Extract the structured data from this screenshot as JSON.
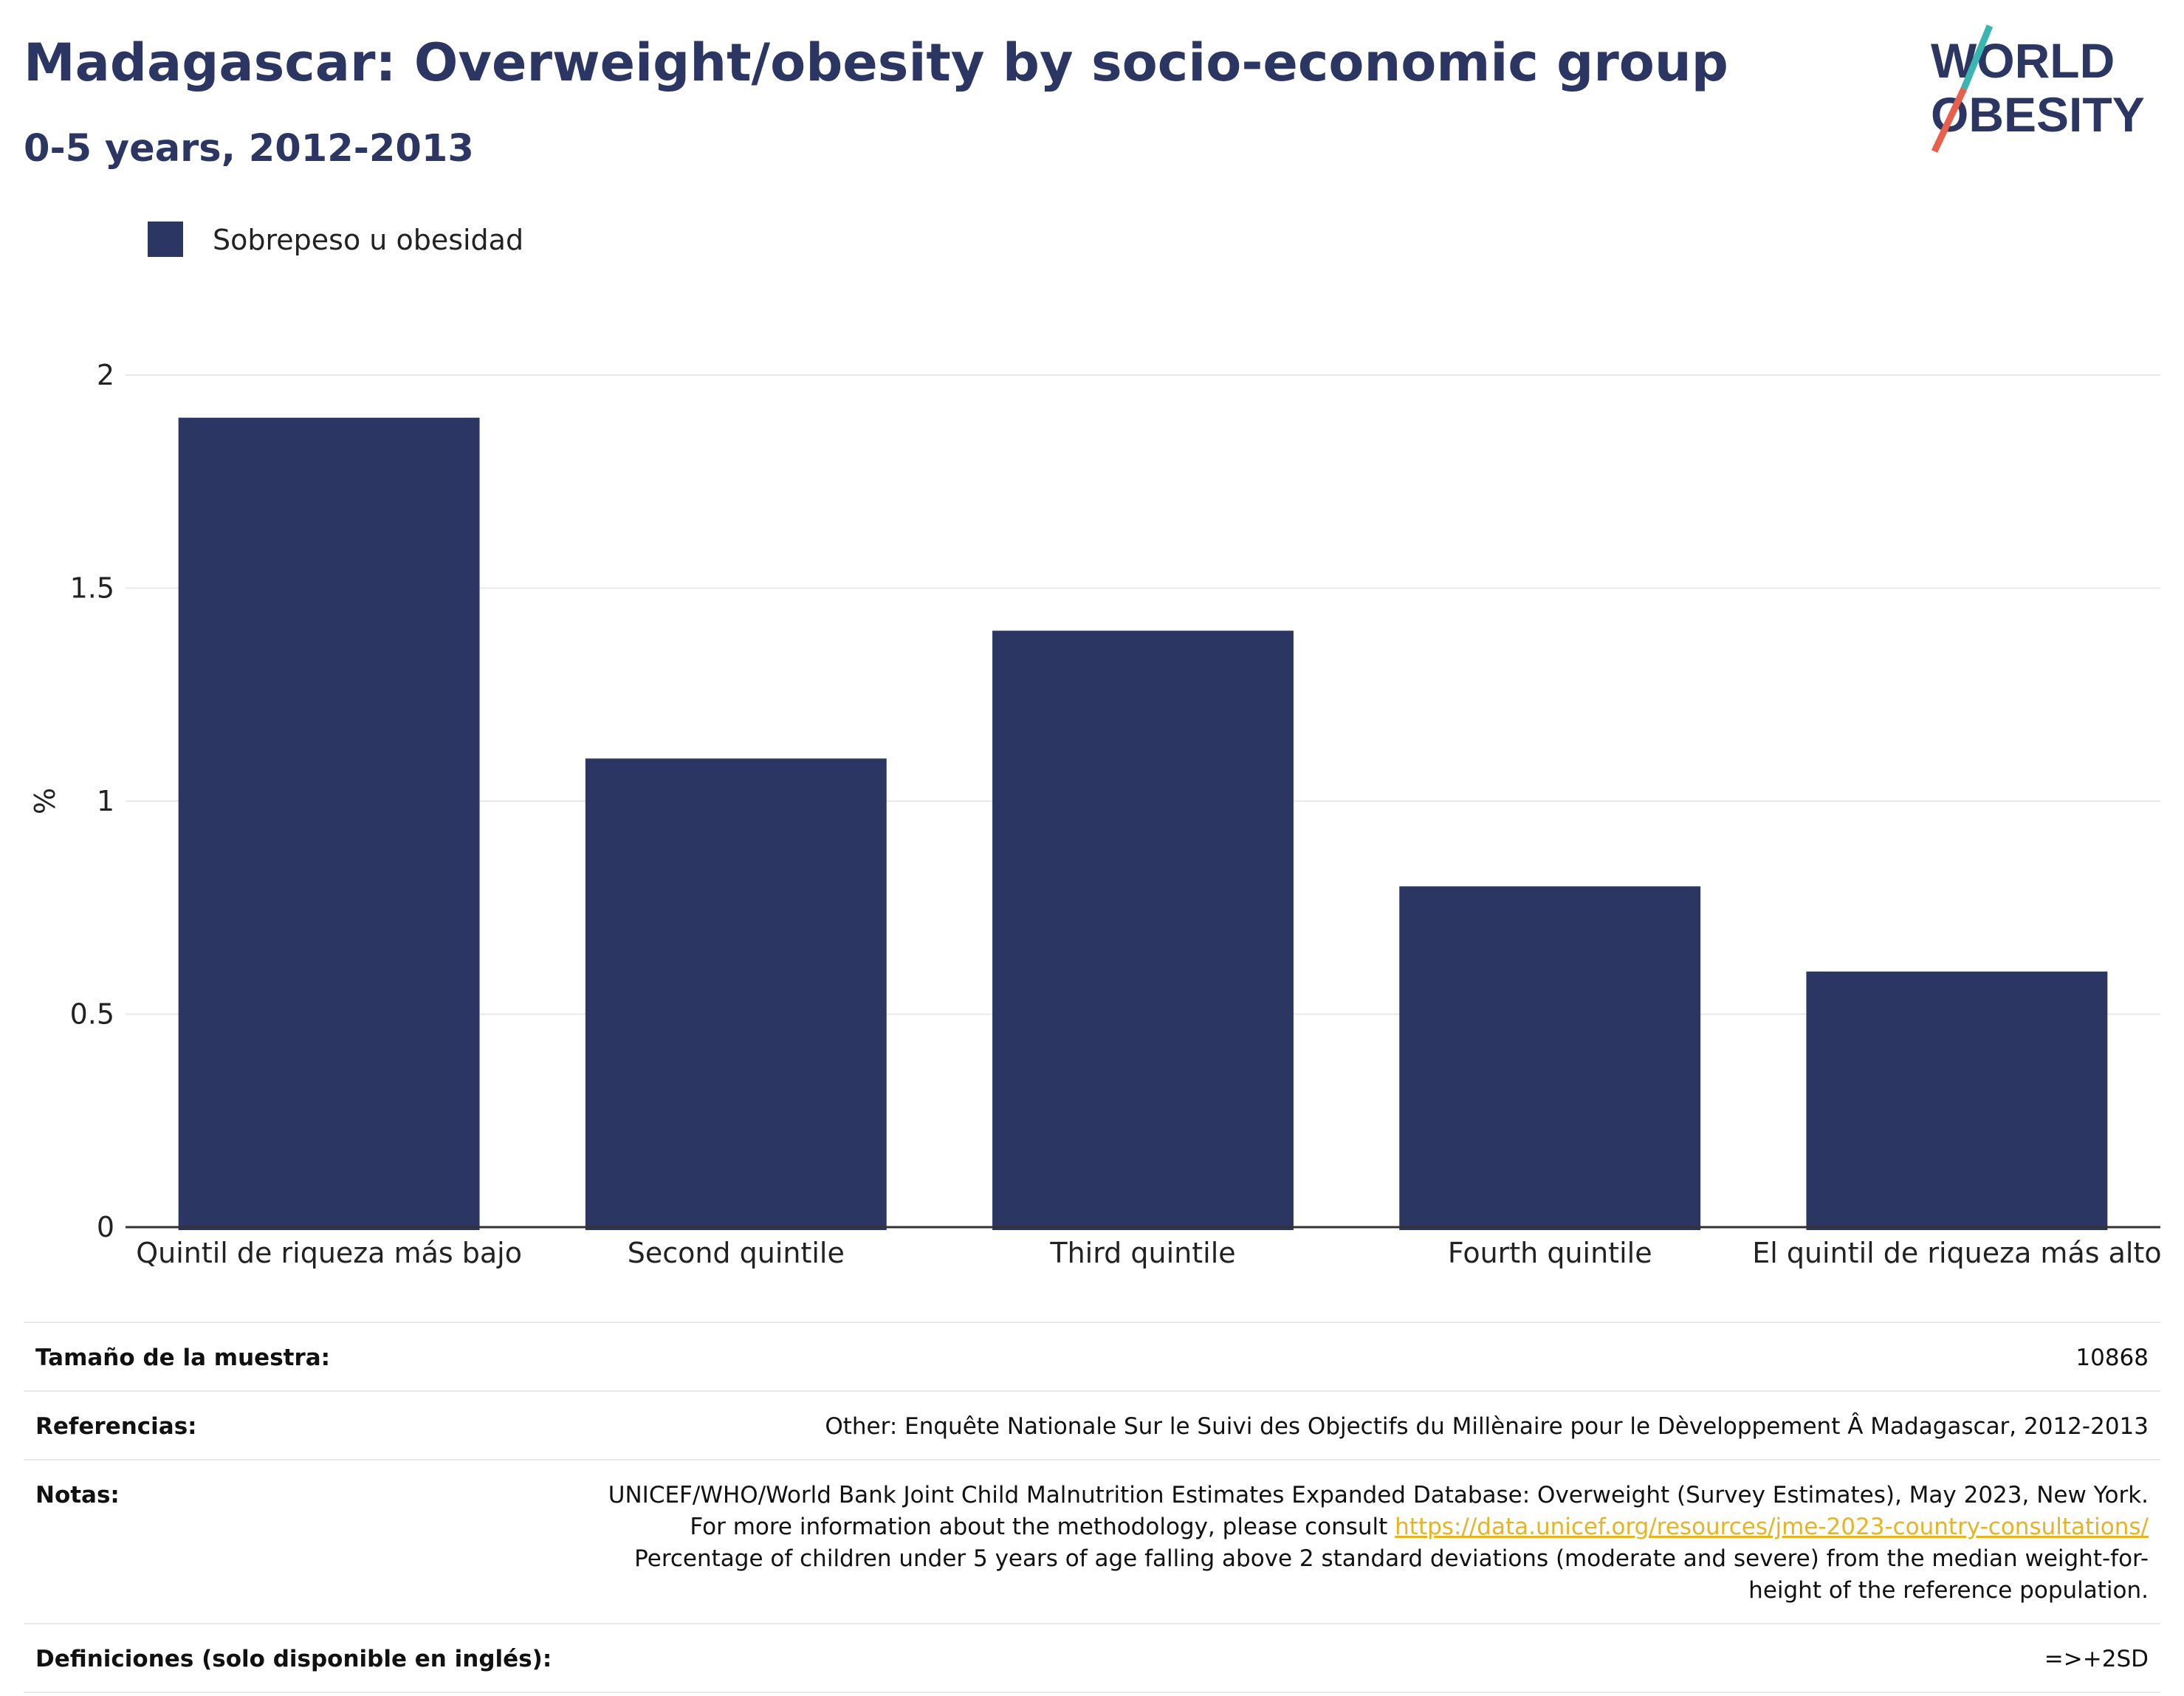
{
  "header": {
    "title": "Madagascar: Overweight/obesity by socio-economic group",
    "subtitle": "0-5 years, 2012-2013"
  },
  "logo": {
    "line1": "WORLD",
    "line2": "OBESITY",
    "colors": {
      "text": "#2b3663",
      "slash_top": "#3ab5b0",
      "slash_bottom": "#e8604c"
    }
  },
  "colors": {
    "bar": "#2b3663",
    "grid": "#e8e8e8",
    "axis": "#333333",
    "title": "#2b3663"
  },
  "chart_data": {
    "type": "bar",
    "title": "Madagascar: Overweight/obesity by socio-economic group",
    "subtitle": "0-5 years, 2012-2013",
    "categories": [
      "Quintil de riqueza más bajo",
      "Second quintile",
      "Third quintile",
      "Fourth quintile",
      "El quintil de riqueza más alto"
    ],
    "series": [
      {
        "name": "Sobrepeso u obesidad",
        "values": [
          1.9,
          1.1,
          1.4,
          0.8,
          0.6
        ]
      }
    ],
    "xlabel": "",
    "ylabel": "%",
    "ylim": [
      0,
      2
    ],
    "yticks": [
      0,
      0.5,
      1,
      1.5,
      2
    ],
    "ytick_labels": [
      "0",
      "0.5",
      "1",
      "1.5",
      "2"
    ],
    "grid": true,
    "legend_position": "top-left"
  },
  "footer": {
    "sample_label": "Tamaño de la muestra:",
    "sample_value": "10868",
    "references_label": "Referencias:",
    "references_value": "Other: Enquête Nationale Sur le Suivi des Objectifs du Millènaire pour le Dèveloppement Â Madagascar, 2012-2013",
    "notes_label": "Notas:",
    "notes_part1": "UNICEF/WHO/World Bank Joint Child Malnutrition Estimates Expanded Database: Overweight (Survey Estimates), May 2023, New York. For more information about the methodology, please consult ",
    "notes_link": "https://data.unicef.org/resources/jme-2023-country-consultations/",
    "notes_part2": " Percentage of children under 5 years of age falling above 2 standard deviations (moderate and severe) from the median weight-for-height of the reference population.",
    "definitions_label": "Definiciones (solo disponible en inglés):",
    "definitions_value": "=>+2SD"
  }
}
